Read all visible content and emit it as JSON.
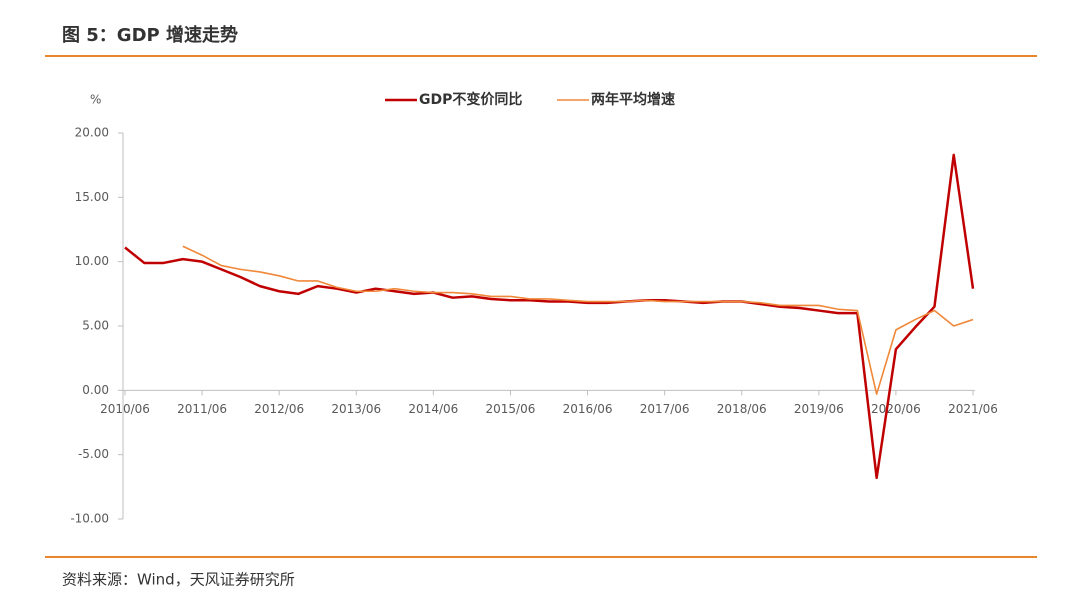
{
  "chart_data": {
    "type": "line",
    "title": "图 5：GDP 增速走势",
    "ylabel": "%",
    "source": "资料来源：Wind，天风证券研究所",
    "categories": [
      "2010/06",
      null,
      null,
      null,
      "2011/06",
      null,
      null,
      null,
      "2012/06",
      null,
      null,
      null,
      "2013/06",
      null,
      null,
      null,
      "2014/06",
      null,
      null,
      null,
      "2015/06",
      null,
      null,
      null,
      "2016/06",
      null,
      null,
      null,
      "2017/06",
      null,
      null,
      null,
      "2018/06",
      null,
      null,
      null,
      "2019/06",
      null,
      null,
      null,
      "2020/06",
      null,
      null,
      null,
      "2021/06"
    ],
    "series": [
      {
        "name": "GDP不变价同比",
        "color": "#c00000",
        "values": [
          11.1,
          9.9,
          9.9,
          10.2,
          10.0,
          9.4,
          8.8,
          8.1,
          7.7,
          7.5,
          8.1,
          7.9,
          7.6,
          7.9,
          7.7,
          7.5,
          7.6,
          7.2,
          7.3,
          7.1,
          7.0,
          7.0,
          6.9,
          6.9,
          6.8,
          6.8,
          6.9,
          7.0,
          7.0,
          6.9,
          6.8,
          6.9,
          6.9,
          6.7,
          6.5,
          6.4,
          6.2,
          6.0,
          6.0,
          -6.8,
          3.2,
          4.9,
          6.5,
          18.3,
          7.9
        ]
      },
      {
        "name": "两年平均增速",
        "color": "#f0883a",
        "values": [
          null,
          null,
          null,
          11.2,
          10.5,
          9.7,
          9.4,
          9.2,
          8.9,
          8.5,
          8.5,
          8.0,
          7.7,
          7.7,
          7.9,
          7.7,
          7.6,
          7.6,
          7.5,
          7.3,
          7.3,
          7.1,
          7.1,
          7.0,
          6.9,
          6.9,
          6.9,
          7.0,
          6.9,
          6.9,
          6.9,
          6.9,
          6.9,
          6.8,
          6.6,
          6.6,
          6.6,
          6.3,
          6.2,
          -0.3,
          4.7,
          5.5,
          6.2,
          5.0,
          5.5
        ]
      }
    ],
    "ylim": [
      -10,
      20
    ],
    "yticks": [
      {
        "value": -10,
        "label": "-10.00"
      },
      {
        "value": -5,
        "label": "-5.00"
      },
      {
        "value": 0,
        "label": "0.00"
      },
      {
        "value": 5,
        "label": "5.00"
      },
      {
        "value": 10,
        "label": "10.00"
      },
      {
        "value": 15,
        "label": "15.00"
      },
      {
        "value": 20,
        "label": "20.00"
      }
    ],
    "grid": false
  }
}
